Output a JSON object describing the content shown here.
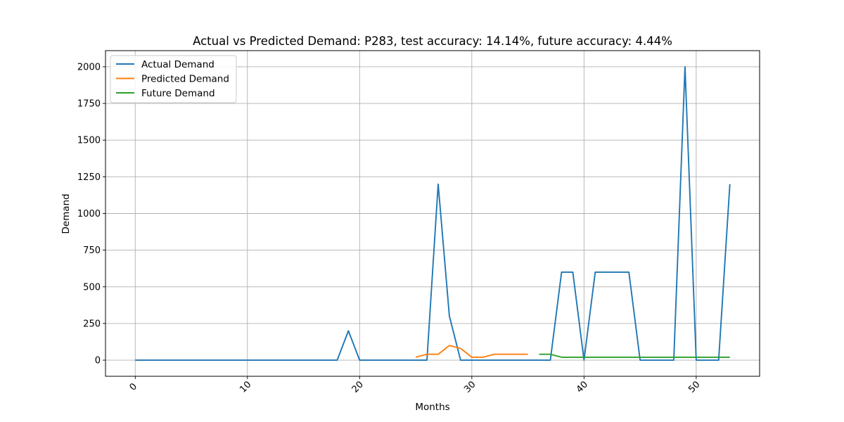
{
  "chart_data": {
    "type": "line",
    "title": "Actual vs Predicted Demand: P283, test accuracy: 14.14%, future accuracy: 4.44%",
    "xlabel": "Months",
    "ylabel": "Demand",
    "xlim": [
      -2.65,
      55.65
    ],
    "ylim": [
      -110,
      2110
    ],
    "xticks": [
      0,
      10,
      20,
      30,
      40,
      50
    ],
    "yticks": [
      0,
      250,
      500,
      750,
      1000,
      1250,
      1500,
      1750,
      2000
    ],
    "xtick_rotation": 45,
    "grid": true,
    "legend_position": "top-left",
    "series": [
      {
        "name": "Actual Demand",
        "color": "#1f77b4",
        "x": [
          0,
          1,
          2,
          3,
          4,
          5,
          6,
          7,
          8,
          9,
          10,
          11,
          12,
          13,
          14,
          15,
          16,
          17,
          18,
          19,
          20,
          21,
          22,
          23,
          24,
          25,
          26,
          27,
          28,
          29,
          30,
          31,
          32,
          33,
          34,
          35,
          36,
          37,
          38,
          39,
          40,
          41,
          42,
          43,
          44,
          45,
          46,
          47,
          48,
          49,
          50,
          51,
          52,
          53
        ],
        "values": [
          0,
          0,
          0,
          0,
          0,
          0,
          0,
          0,
          0,
          0,
          0,
          0,
          0,
          0,
          0,
          0,
          0,
          0,
          0,
          200,
          0,
          0,
          0,
          0,
          0,
          0,
          0,
          1200,
          300,
          0,
          0,
          0,
          0,
          0,
          0,
          0,
          0,
          0,
          600,
          600,
          0,
          600,
          600,
          600,
          600,
          0,
          0,
          0,
          0,
          2000,
          0,
          0,
          0,
          1200
        ]
      },
      {
        "name": "Predicted Demand",
        "color": "#ff7f0e",
        "x": [
          25,
          26,
          27,
          28,
          29,
          30,
          31,
          32,
          33,
          34,
          35
        ],
        "values": [
          20,
          40,
          40,
          100,
          80,
          20,
          20,
          40,
          40,
          40,
          40
        ]
      },
      {
        "name": "Future Demand",
        "color": "#2ca02c",
        "x": [
          36,
          37,
          38,
          39,
          40,
          41,
          42,
          43,
          44,
          45,
          46,
          47,
          48,
          49,
          50,
          51,
          52,
          53
        ],
        "values": [
          40,
          40,
          20,
          20,
          20,
          20,
          20,
          20,
          20,
          20,
          20,
          20,
          20,
          20,
          20,
          20,
          20,
          20
        ]
      }
    ]
  }
}
